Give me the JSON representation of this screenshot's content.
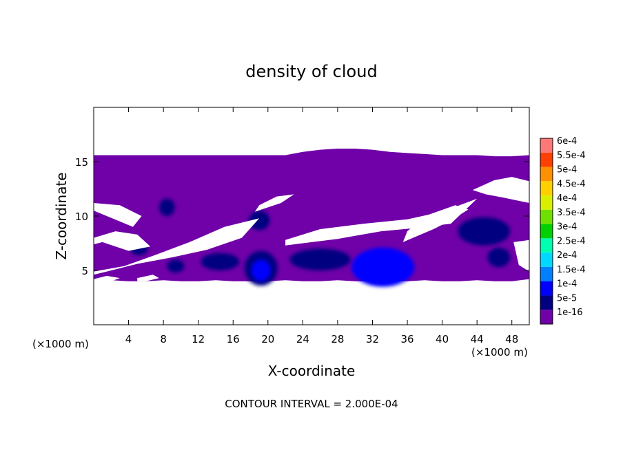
{
  "chart_data": {
    "type": "heatmap",
    "title": "density of cloud",
    "xlabel": "X-coordinate",
    "ylabel": "Z-coordinate",
    "x_unit_label_left": "(×1000 m)",
    "x_unit_label_right": "(×1000 m)",
    "footer": "CONTOUR INTERVAL = 2.000E-04",
    "xlim": [
      0,
      50
    ],
    "ylim": [
      0,
      20
    ],
    "x_ticks": [
      4,
      8,
      12,
      16,
      20,
      24,
      28,
      32,
      36,
      40,
      44,
      48
    ],
    "y_ticks": [
      5,
      10,
      15
    ],
    "grid": false,
    "legend": {
      "placement": "right",
      "levels": [
        "1e-16",
        "5e-5",
        "1e-4",
        "1.5e-4",
        "2e-4",
        "2.5e-4",
        "3e-4",
        "3.5e-4",
        "4e-4",
        "4.5e-4",
        "5e-4",
        "5.5e-4",
        "6e-4"
      ],
      "colors": [
        "#7000a8",
        "#000080",
        "#0000ff",
        "#0080ff",
        "#00d8ff",
        "#00ffb0",
        "#00d000",
        "#70e000",
        "#d8f000",
        "#ffd000",
        "#ff9000",
        "#ff4000",
        "#ff7878"
      ]
    },
    "cloud_base": {
      "x": [
        0,
        2,
        4,
        6,
        8,
        10,
        12,
        14,
        16,
        18,
        20,
        22,
        24,
        26,
        28,
        30,
        32,
        34,
        36,
        38,
        40,
        42,
        44,
        46,
        48,
        50
      ],
      "z": [
        4.2,
        4.1,
        4.0,
        4.0,
        4.1,
        4.0,
        4.0,
        4.1,
        4.0,
        4.0,
        4.0,
        4.1,
        4.0,
        4.0,
        4.1,
        4.0,
        4.0,
        4.0,
        4.0,
        4.1,
        4.0,
        4.0,
        4.1,
        4.0,
        4.0,
        4.2
      ]
    },
    "cloud_top": {
      "x": [
        0,
        2,
        4,
        6,
        8,
        10,
        12,
        14,
        16,
        18,
        20,
        22,
        24,
        26,
        28,
        30,
        32,
        34,
        36,
        38,
        40,
        42,
        44,
        46,
        48,
        50
      ],
      "z": [
        15.6,
        15.6,
        15.6,
        15.6,
        15.6,
        15.6,
        15.6,
        15.6,
        15.6,
        15.6,
        15.6,
        15.6,
        15.9,
        16.1,
        16.2,
        16.2,
        16.1,
        15.9,
        15.8,
        15.7,
        15.6,
        15.6,
        15.6,
        15.5,
        15.5,
        15.6
      ]
    },
    "clear_regions": [
      {
        "x": [
          0,
          3,
          5.5,
          4.5,
          1.5,
          0
        ],
        "z": [
          11.2,
          11.0,
          10.0,
          9.0,
          10.0,
          10.5
        ]
      },
      {
        "x": [
          0,
          2.5,
          5,
          6.5,
          4,
          1,
          0
        ],
        "z": [
          8.0,
          8.6,
          8.3,
          7.2,
          6.8,
          7.6,
          7.4
        ]
      },
      {
        "x": [
          0,
          3.5,
          7,
          11,
          15,
          19,
          17,
          13,
          9,
          5,
          1.5,
          0
        ],
        "z": [
          4.9,
          5.4,
          6.4,
          7.6,
          9.0,
          9.8,
          8.0,
          6.9,
          6.2,
          5.6,
          4.9,
          4.6
        ]
      },
      {
        "x": [
          18.5,
          21.5,
          23,
          21,
          19
        ],
        "z": [
          10.4,
          11.2,
          12.0,
          11.8,
          11.0
        ]
      },
      {
        "x": [
          22,
          26,
          31,
          36,
          40,
          44,
          41,
          37,
          33,
          28,
          24,
          22
        ],
        "z": [
          7.8,
          8.8,
          9.3,
          9.7,
          10.4,
          11.6,
          9.3,
          8.9,
          8.6,
          7.9,
          7.5,
          7.3
        ]
      },
      {
        "x": [
          35.5,
          39,
          41,
          43,
          41.5,
          38,
          36
        ],
        "z": [
          7.6,
          8.8,
          9.6,
          10.6,
          11.0,
          10.0,
          8.6
        ]
      },
      {
        "x": [
          43.5,
          46,
          48,
          50,
          50,
          47,
          45
        ],
        "z": [
          12.4,
          13.3,
          13.6,
          13.2,
          11.2,
          11.7,
          12.0
        ]
      },
      {
        "x": [
          48.2,
          50,
          50,
          48.8
        ],
        "z": [
          7.6,
          7.8,
          4.9,
          5.5
        ]
      },
      {
        "x": [
          0,
          1.5,
          3,
          2,
          0
        ],
        "z": [
          4.2,
          4.5,
          4.3,
          4.0,
          4.0
        ]
      },
      {
        "x": [
          5,
          6.8,
          7.5,
          6,
          5
        ],
        "z": [
          4.3,
          4.6,
          4.3,
          4.0,
          4.0
        ]
      }
    ],
    "cells": [
      {
        "x": 19.2,
        "z": 5.2,
        "rx": 1.9,
        "rz": 1.6,
        "value": 9e-05
      },
      {
        "x": 19.2,
        "z": 5.0,
        "rx": 1.1,
        "rz": 1.0,
        "value": 0.00014
      },
      {
        "x": 19.0,
        "z": 9.6,
        "rx": 1.2,
        "rz": 0.9,
        "value": 8e-05
      },
      {
        "x": 33.2,
        "z": 5.3,
        "rx": 3.6,
        "rz": 1.8,
        "value": 0.0001
      },
      {
        "x": 33.0,
        "z": 5.0,
        "rx": 2.6,
        "rz": 1.2,
        "value": 0.00014
      },
      {
        "x": 26.0,
        "z": 6.0,
        "rx": 3.5,
        "rz": 1.0,
        "value": 6e-05
      },
      {
        "x": 14.5,
        "z": 5.8,
        "rx": 2.2,
        "rz": 0.8,
        "value": 5e-05
      },
      {
        "x": 8.4,
        "z": 10.8,
        "rx": 0.9,
        "rz": 0.8,
        "value": 5e-05
      },
      {
        "x": 44.8,
        "z": 8.6,
        "rx": 3.0,
        "rz": 1.3,
        "value": 5e-05
      },
      {
        "x": 46.5,
        "z": 6.2,
        "rx": 1.3,
        "rz": 0.9,
        "value": 5e-05
      },
      {
        "x": 5.2,
        "z": 7.0,
        "rx": 1.0,
        "rz": 0.6,
        "value": 5e-05
      },
      {
        "x": 9.4,
        "z": 5.4,
        "rx": 1.0,
        "rz": 0.6,
        "value": 5e-05
      }
    ]
  }
}
